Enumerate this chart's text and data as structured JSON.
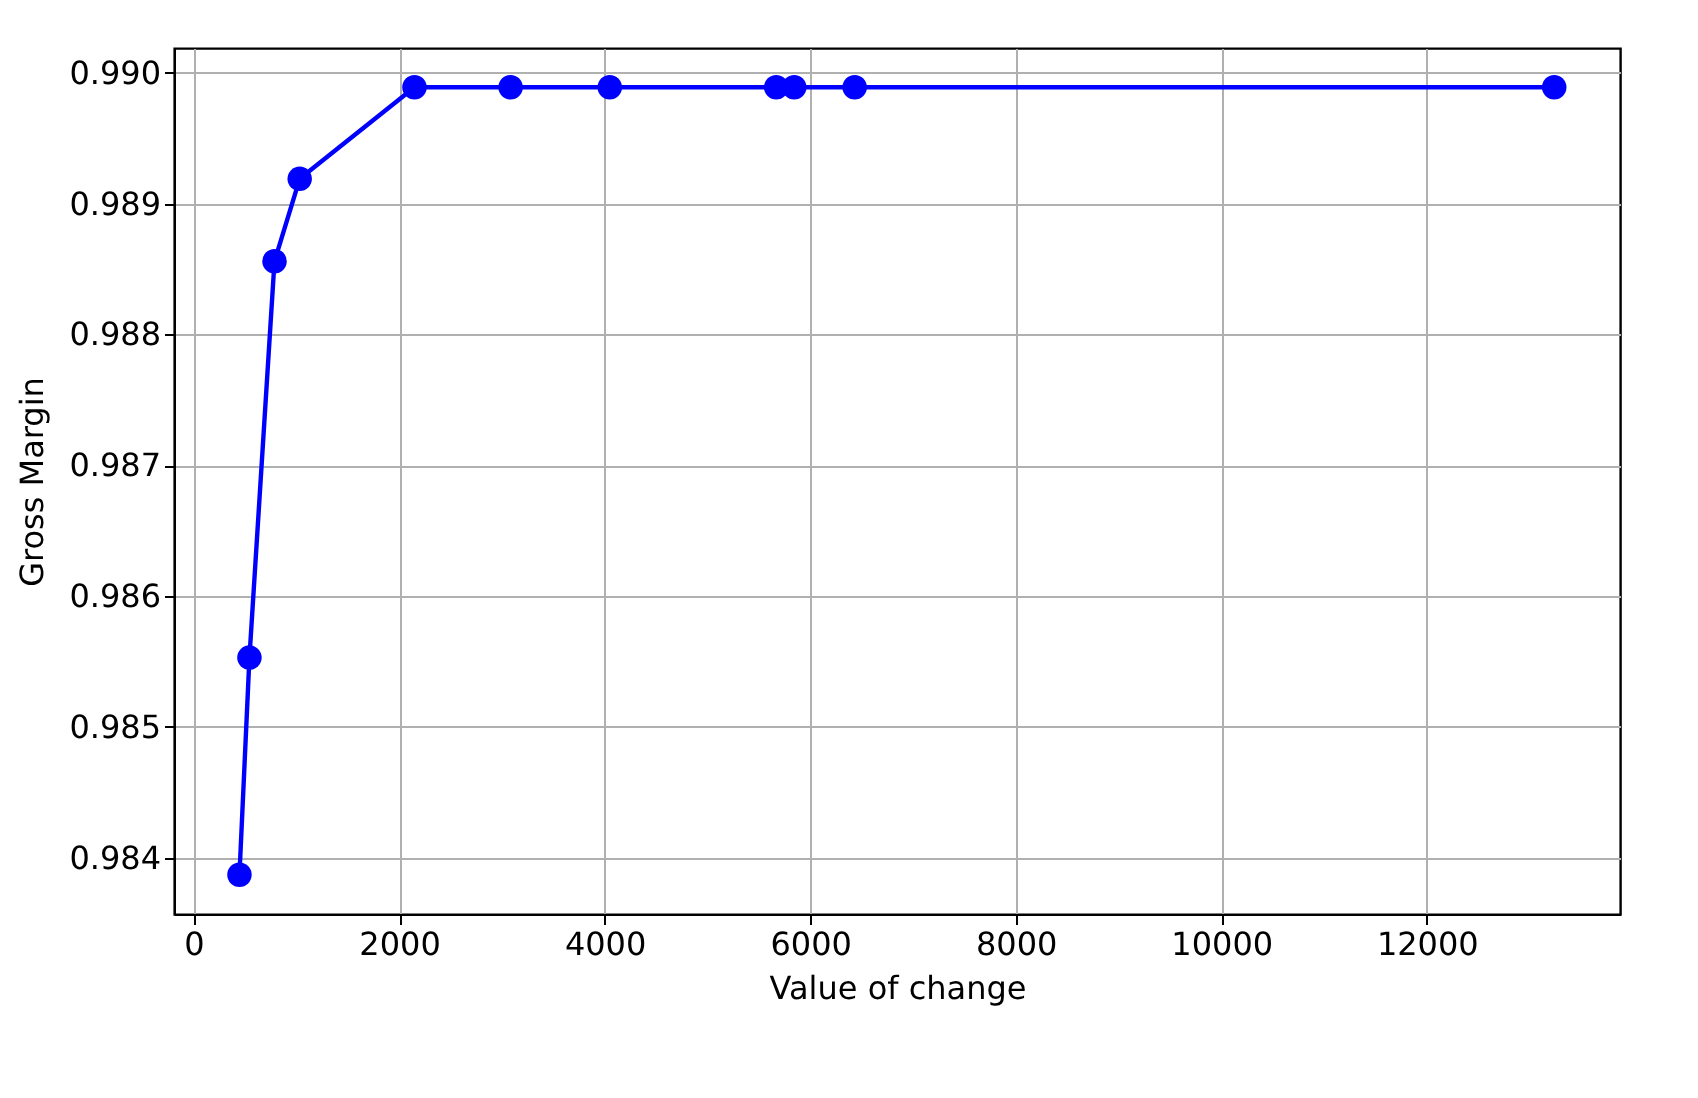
{
  "chart_data": {
    "type": "line",
    "xlabel": "Value of change",
    "ylabel": "Gross Margin",
    "x": [
      447,
      544,
      788,
      1033,
      2150,
      3085,
      4050,
      5670,
      5845,
      6433,
      13240
    ],
    "series": [
      {
        "color": "#0000ff",
        "values": [
          0.98387,
          0.98553,
          0.98856,
          0.98919,
          0.98989,
          0.98989,
          0.98989,
          0.98989,
          0.98989,
          0.98989,
          0.98989
        ]
      }
    ],
    "xlim": [
      -190,
      13880
    ],
    "xticks": [
      0,
      2000,
      4000,
      6000,
      8000,
      10000,
      12000
    ],
    "ylim": [
      0.98357,
      0.99019
    ],
    "yticks": [
      0.984,
      0.985,
      0.986,
      0.987,
      0.988,
      0.989,
      {
        "value": 0.99,
        "label": "0.990"
      }
    ],
    "grid": true,
    "marker": "circle",
    "line_style": "solid"
  }
}
